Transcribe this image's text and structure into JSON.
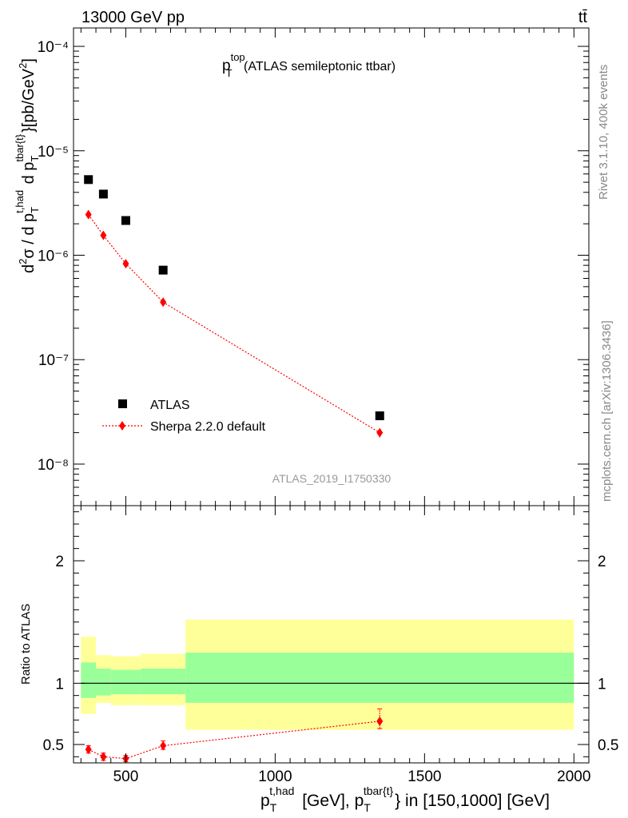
{
  "header": {
    "energy_label": "13000 GeV pp",
    "process_label": "tt̄"
  },
  "side_labels": {
    "rivet_label": "Rivet 3.1.10,  400k events",
    "source_label": "mcplots.cern.ch [arXiv:1306.3436]"
  },
  "analysis_label": "ATLAS_2019_I1750330",
  "chart_data": [
    {
      "type": "scatter",
      "panel": "main",
      "title": {
        "main": "p",
        "sup": "top",
        "sub": "T",
        "rest": " (ATLAS semileptonic ttbar)"
      },
      "ylabel": "d²σ / d p_T^{t,had} d p_T^{tbar{t}} [pb/GeV²]",
      "yscale": "log",
      "ylim": [
        4e-09,
        0.00015
      ],
      "xlim": [
        325,
        2050
      ],
      "y_tick_labels": [
        "10⁻⁸",
        "10⁻⁷",
        "10⁻⁶",
        "10⁻⁵",
        "10⁻⁴"
      ],
      "legend_position": "lower-left",
      "series": [
        {
          "name": "ATLAS",
          "marker": "square",
          "color": "#000000",
          "x": [
            375,
            425,
            500,
            625,
            1350
          ],
          "y": [
            5.3e-06,
            3.85e-06,
            2.15e-06,
            7.2e-07,
            2.9e-08
          ]
        },
        {
          "name": "Sherpa 2.2.0 default",
          "marker": "diamond",
          "line": "dotted",
          "color": "#ff0000",
          "x": [
            375,
            425,
            500,
            625,
            1350
          ],
          "y": [
            2.45e-06,
            1.55e-06,
            8.3e-07,
            3.55e-07,
            2e-08
          ],
          "y_err_low": [
            2.3e-06,
            1.47e-06,
            7.8e-07,
            3.35e-07,
            1.8e-08
          ],
          "y_err_high": [
            2.6e-06,
            1.63e-06,
            8.8e-07,
            3.75e-07,
            2.2e-08
          ]
        }
      ]
    },
    {
      "type": "scatter",
      "panel": "ratio",
      "ylabel": "Ratio to ATLAS",
      "xlabel": "p_T^{t,had} [GeV], p_T^{tbar{t}} in [150,1000] [GeV]",
      "ylim": [
        0.35,
        2.45
      ],
      "xlim": [
        325,
        2050
      ],
      "y_ticks": [
        0.5,
        1,
        2
      ],
      "y_tick_labels": [
        "0.5",
        "1",
        "2"
      ],
      "x_ticks": [
        500,
        1000,
        1500,
        2000
      ],
      "x_tick_labels": [
        "500",
        "1000",
        "1500",
        "2000"
      ],
      "reference_line": 1,
      "bands": {
        "edges": [
          350,
          400,
          450,
          550,
          700,
          2000
        ],
        "inner_low": [
          0.88,
          0.9,
          0.91,
          0.91,
          0.84
        ],
        "inner_high": [
          1.17,
          1.12,
          1.11,
          1.12,
          1.25
        ],
        "outer_low": [
          0.75,
          0.84,
          0.82,
          0.82,
          0.62
        ],
        "outer_high": [
          1.38,
          1.23,
          1.22,
          1.24,
          1.52
        ],
        "inner_color": "#99ff99",
        "outer_color": "#ffff99"
      },
      "series": [
        {
          "name": "Sherpa 2.2.0 default",
          "color": "#ff0000",
          "x": [
            375,
            425,
            500,
            625,
            1350
          ],
          "y": [
            0.46,
            0.4,
            0.385,
            0.49,
            0.69
          ],
          "y_err_low": [
            0.43,
            0.37,
            0.36,
            0.46,
            0.63
          ],
          "y_err_high": [
            0.49,
            0.43,
            0.41,
            0.53,
            0.79
          ]
        }
      ]
    }
  ]
}
